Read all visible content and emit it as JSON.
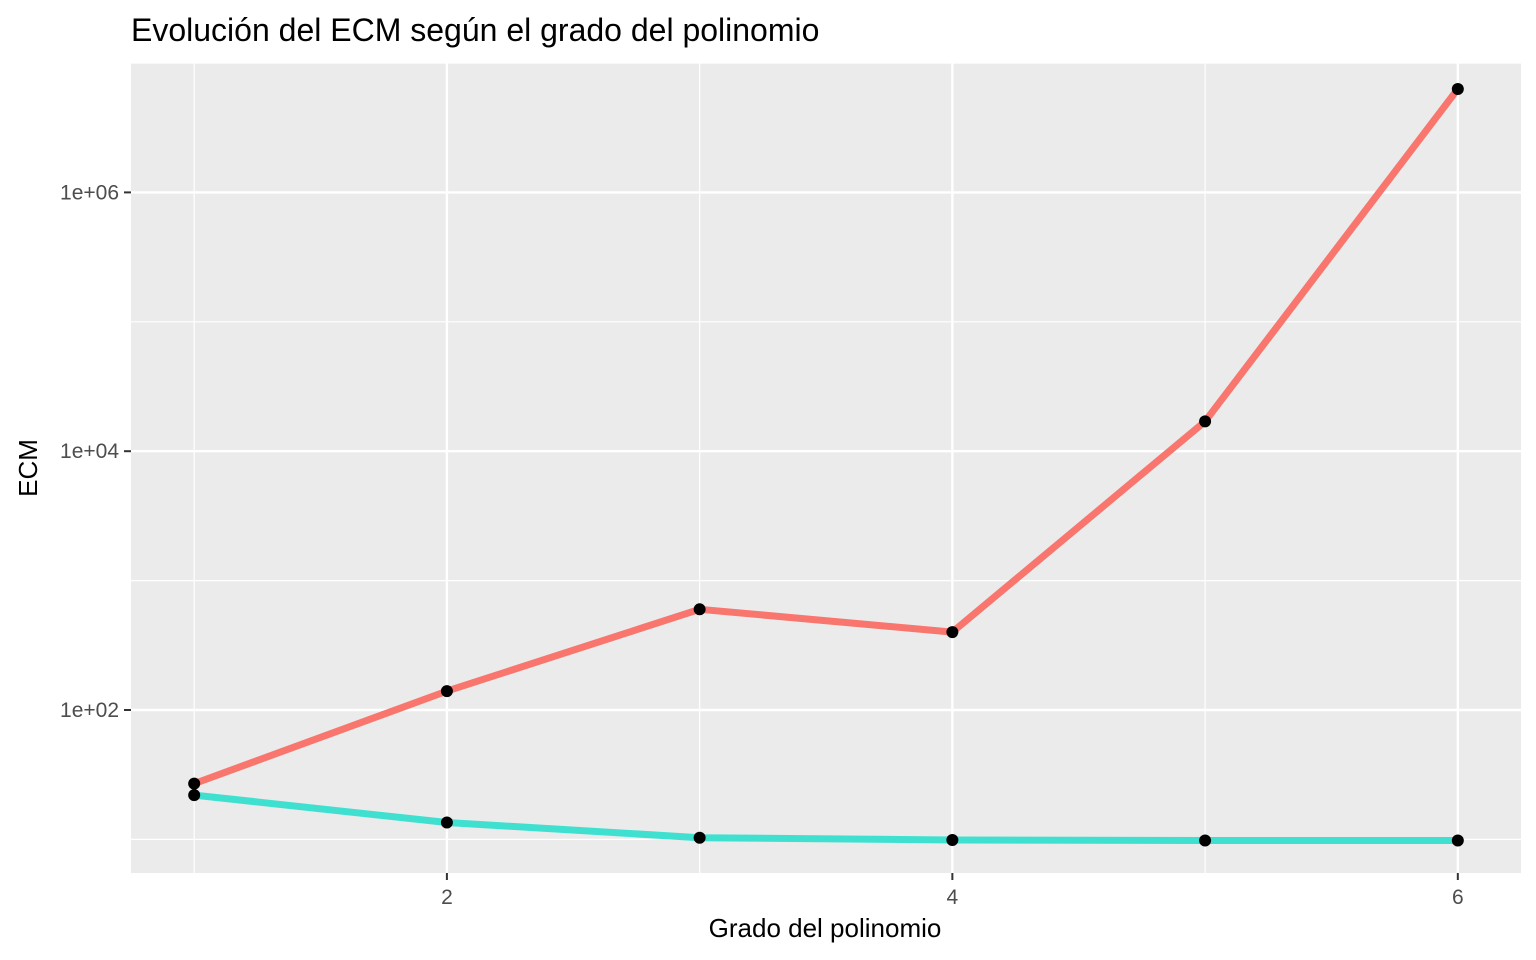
{
  "chart_data": {
    "type": "line",
    "title": "Evolución del ECM según el grado del polinomio",
    "xlabel": "Grado del polinomio",
    "ylabel": "ECM",
    "y_scale": "log10",
    "x": [
      1,
      2,
      3,
      4,
      5,
      6
    ],
    "xlim": [
      0.75,
      6.25
    ],
    "ylim": [
      5.5,
      10000000
    ],
    "x_ticks": [
      2,
      4,
      6
    ],
    "x_tick_labels": [
      "2",
      "4",
      "6"
    ],
    "y_ticks": [
      100,
      10000,
      1000000
    ],
    "y_tick_labels": [
      "1e+02",
      "1e+04",
      "1e+06"
    ],
    "grid": true,
    "legend": "none",
    "series": [
      {
        "color": "#F8766D",
        "values": [
          27,
          140,
          600,
          400,
          17000,
          6300000
        ]
      },
      {
        "color": "#40E0D0",
        "values": [
          22,
          13.5,
          10.3,
          9.9,
          9.8,
          9.8
        ]
      }
    ]
  }
}
